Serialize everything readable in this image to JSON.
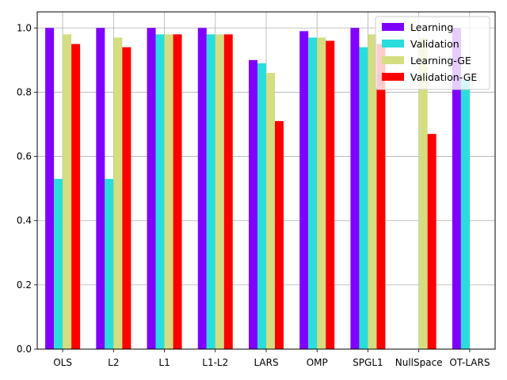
{
  "chart_data": {
    "type": "bar",
    "title": "",
    "xlabel": "",
    "ylabel": "",
    "categories": [
      "OLS",
      "L2",
      "L1",
      "L1-L2",
      "LARS",
      "OMP",
      "SPGL1",
      "NullSpace",
      "OT-LARS"
    ],
    "series": [
      {
        "name": "Learning",
        "color": "#8000ff",
        "values": [
          1.0,
          1.0,
          1.0,
          1.0,
          0.9,
          0.99,
          1.0,
          null,
          1.0
        ]
      },
      {
        "name": "Validation",
        "color": "#2adddd",
        "values": [
          0.53,
          0.53,
          0.98,
          0.98,
          0.89,
          0.97,
          0.94,
          null,
          0.84
        ]
      },
      {
        "name": "Learning-GE",
        "color": "#d4dd80",
        "values": [
          0.98,
          0.97,
          0.98,
          0.98,
          0.86,
          0.97,
          0.98,
          0.97,
          null
        ]
      },
      {
        "name": "Validation-GE",
        "color": "#ff0000",
        "values": [
          0.95,
          0.94,
          0.98,
          0.98,
          0.71,
          0.96,
          0.95,
          0.67,
          null
        ]
      }
    ],
    "ylim": [
      0,
      1.05
    ],
    "yticks": [
      "0.0",
      "0.2",
      "0.4",
      "0.6",
      "0.8",
      "1.0"
    ],
    "grid": true,
    "legend_position": "top-right"
  }
}
